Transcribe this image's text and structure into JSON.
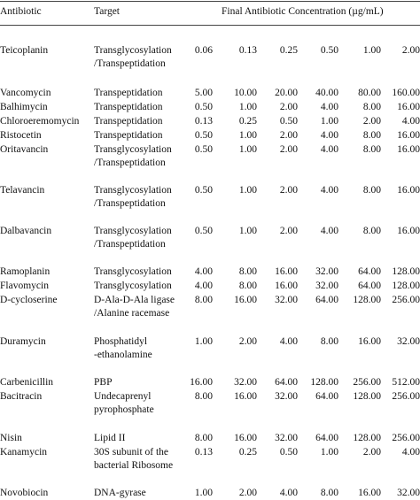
{
  "header": {
    "antibiotic": "Antibiotic",
    "target": "Target",
    "concentration": "Final Antibiotic Concentration (µg/mL)"
  },
  "rows": [
    {
      "name": "Teicoplanin",
      "target": [
        "Transglycosylation",
        "/Transpeptidation"
      ],
      "values": [
        "0.06",
        "0.13",
        "0.25",
        "0.50",
        "1.00",
        "2.00"
      ]
    },
    {
      "name": "Vancomycin",
      "target": [
        "Transpeptidation"
      ],
      "values": [
        "5.00",
        "10.00",
        "20.00",
        "40.00",
        "80.00",
        "160.00"
      ]
    },
    {
      "name": "Balhimycin",
      "target": [
        "Transpeptidation"
      ],
      "values": [
        "0.50",
        "1.00",
        "2.00",
        "4.00",
        "8.00",
        "16.00"
      ]
    },
    {
      "name": "Chloroeremomycin",
      "target": [
        "Transpeptidation"
      ],
      "values": [
        "0.13",
        "0.25",
        "0.50",
        "1.00",
        "2.00",
        "4.00"
      ]
    },
    {
      "name": "Ristocetin",
      "target": [
        "Transpeptidation"
      ],
      "values": [
        "0.50",
        "1.00",
        "2.00",
        "4.00",
        "8.00",
        "16.00"
      ]
    },
    {
      "name": "Oritavancin",
      "target": [
        "Transglycosylation",
        "/Transpeptidation"
      ],
      "values": [
        "0.50",
        "1.00",
        "2.00",
        "4.00",
        "8.00",
        "16.00"
      ]
    },
    {
      "name": "Telavancin",
      "target": [
        "Transglycosylation",
        "/Transpeptidation"
      ],
      "values": [
        "0.50",
        "1.00",
        "2.00",
        "4.00",
        "8.00",
        "16.00"
      ]
    },
    {
      "name": "Dalbavancin",
      "target": [
        "Transglycosylation",
        "/Transpeptidation"
      ],
      "values": [
        "0.50",
        "1.00",
        "2.00",
        "4.00",
        "8.00",
        "16.00"
      ]
    },
    {
      "name": "Ramoplanin",
      "target": [
        "Transglycosylation"
      ],
      "values": [
        "4.00",
        "8.00",
        "16.00",
        "32.00",
        "64.00",
        "128.00"
      ]
    },
    {
      "name": "Flavomycin",
      "target": [
        "Transglycosylation"
      ],
      "values": [
        "4.00",
        "8.00",
        "16.00",
        "32.00",
        "64.00",
        "128.00"
      ]
    },
    {
      "name": "D-cycloserine",
      "target": [
        "D-Ala-D-Ala ligase",
        "/Alanine racemase"
      ],
      "values": [
        "8.00",
        "16.00",
        "32.00",
        "64.00",
        "128.00",
        "256.00"
      ]
    },
    {
      "name": "Duramycin",
      "target": [
        "Phosphatidyl",
        "-ethanolamine"
      ],
      "values": [
        "1.00",
        "2.00",
        "4.00",
        "8.00",
        "16.00",
        "32.00"
      ]
    },
    {
      "name": "Carbenicillin",
      "target": [
        "PBP"
      ],
      "values": [
        "16.00",
        "32.00",
        "64.00",
        "128.00",
        "256.00",
        "512.00"
      ]
    },
    {
      "name": "Bacitracin",
      "target": [
        "Undecaprenyl",
        "pyrophosphate"
      ],
      "values": [
        "8.00",
        "16.00",
        "32.00",
        "64.00",
        "128.00",
        "256.00"
      ]
    },
    {
      "name": "Nisin",
      "target": [
        "Lipid II"
      ],
      "values": [
        "8.00",
        "16.00",
        "32.00",
        "64.00",
        "128.00",
        "256.00"
      ]
    },
    {
      "name": "Kanamycin",
      "target": [
        "30S subunit of the",
        "bacterial Ribosome"
      ],
      "values": [
        "0.13",
        "0.25",
        "0.50",
        "1.00",
        "2.00",
        "4.00"
      ]
    },
    {
      "name": "Novobiocin",
      "target": [
        "DNA-gyrase"
      ],
      "values": [
        "1.00",
        "2.00",
        "4.00",
        "8.00",
        "16.00",
        "32.00"
      ]
    }
  ]
}
